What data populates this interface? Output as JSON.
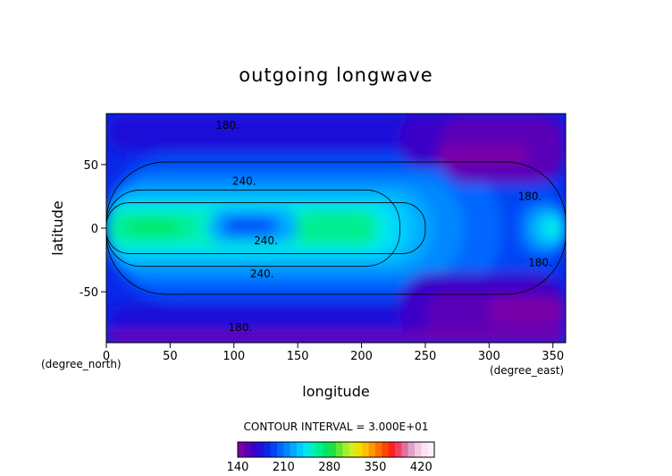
{
  "chart_data": {
    "type": "heatmap",
    "title": "outgoing longwave",
    "xlabel": "longitude",
    "ylabel": "latitude",
    "x_unit": "(degree_east)",
    "y_unit": "(degree_north)",
    "xlim": [
      0,
      360
    ],
    "ylim": [
      -90,
      90
    ],
    "x_ticks": [
      0,
      50,
      100,
      150,
      200,
      250,
      300,
      350
    ],
    "y_ticks": [
      -50,
      0,
      50
    ],
    "contour_interval_text": "CONTOUR INTERVAL = 3.000E+01",
    "contour_labels": [
      {
        "text": "180.",
        "lon": 95,
        "lat": 81
      },
      {
        "text": "240.",
        "lon": 108,
        "lat": 37
      },
      {
        "text": "180.",
        "lon": 332,
        "lat": 25
      },
      {
        "text": "240.",
        "lon": 125,
        "lat": -10
      },
      {
        "text": "180.",
        "lon": 340,
        "lat": -27
      },
      {
        "text": "240.",
        "lon": 122,
        "lat": -36
      },
      {
        "text": "180.",
        "lon": 105,
        "lat": -78
      }
    ],
    "colorbar": {
      "min": 140,
      "max": 440,
      "step": 10,
      "tick_labels": [
        140,
        210,
        280,
        350,
        420
      ],
      "colors": [
        "#7a00a8",
        "#5a00b8",
        "#3a00c8",
        "#1e10d8",
        "#0a28e8",
        "#0044f4",
        "#0066ff",
        "#0088ff",
        "#00aaff",
        "#00ccff",
        "#00e8f0",
        "#00f0c0",
        "#00ee90",
        "#00e860",
        "#20e040",
        "#60e830",
        "#a0f030",
        "#d0f020",
        "#f0e000",
        "#ffc000",
        "#ff9800",
        "#ff7000",
        "#ff4800",
        "#ff2020",
        "#f04060",
        "#e070a0",
        "#e0a0c8",
        "#f0c8e0",
        "#ffe0f0",
        "#fff0f8"
      ]
    },
    "field_regions": [
      {
        "level": 195,
        "lon": [
          0,
          360
        ],
        "lat": [
          -58,
          60
        ]
      },
      {
        "level": 205,
        "lon": [
          0,
          310
        ],
        "lat": [
          -48,
          48
        ]
      },
      {
        "level": 215,
        "lon": [
          0,
          280
        ],
        "lat": [
          -40,
          40
        ]
      },
      {
        "level": 225,
        "lon": [
          0,
          255
        ],
        "lat": [
          -32,
          32
        ]
      },
      {
        "level": 235,
        "lon": [
          0,
          240
        ],
        "lat": [
          -25,
          25
        ]
      },
      {
        "level": 245,
        "lon": [
          0,
          225
        ],
        "lat": [
          -19,
          19
        ]
      },
      {
        "level": 255,
        "lon": [
          0,
          215
        ],
        "lat": [
          -15,
          15
        ]
      },
      {
        "level": 265,
        "lon": [
          5,
          70
        ],
        "lat": [
          -8,
          10
        ]
      },
      {
        "level": 265,
        "lon": [
          150,
          210
        ],
        "lat": [
          -12,
          13
        ]
      },
      {
        "level": 275,
        "lon": [
          18,
          55
        ],
        "lat": [
          -5,
          6
        ]
      },
      {
        "level": 205,
        "lon": [
          322,
          360
        ],
        "lat": [
          -22,
          22
        ]
      },
      {
        "level": 225,
        "lon": [
          330,
          360
        ],
        "lat": [
          -16,
          16
        ]
      },
      {
        "level": 245,
        "lon": [
          340,
          360
        ],
        "lat": [
          -9,
          9
        ]
      },
      {
        "level": 225,
        "lon": [
          80,
          150
        ],
        "lat": [
          -12,
          15
        ]
      },
      {
        "level": 205,
        "lon": [
          90,
          135
        ],
        "lat": [
          -6,
          10
        ]
      },
      {
        "level": 195,
        "lon": [
          97,
          125
        ],
        "lat": [
          -2,
          6
        ]
      },
      {
        "level": 175,
        "lon": [
          0,
          360
        ],
        "lat": [
          60,
          90
        ]
      },
      {
        "level": 165,
        "lon": [
          230,
          360
        ],
        "lat": [
          48,
          90
        ]
      },
      {
        "level": 155,
        "lon": [
          260,
          360
        ],
        "lat": [
          35,
          88
        ]
      },
      {
        "level": 145,
        "lon": [
          260,
          330
        ],
        "lat": [
          50,
          65
        ]
      },
      {
        "level": 175,
        "lon": [
          0,
          360
        ],
        "lat": [
          -90,
          -60
        ]
      },
      {
        "level": 165,
        "lon": [
          230,
          360
        ],
        "lat": [
          -90,
          -35
        ]
      },
      {
        "level": 155,
        "lon": [
          250,
          360
        ],
        "lat": [
          -90,
          -50
        ]
      },
      {
        "level": 145,
        "lon": [
          0,
          360
        ],
        "lat": [
          -90,
          -82
        ]
      },
      {
        "level": 145,
        "lon": [
          300,
          360
        ],
        "lat": [
          -75,
          -55
        ]
      }
    ]
  }
}
